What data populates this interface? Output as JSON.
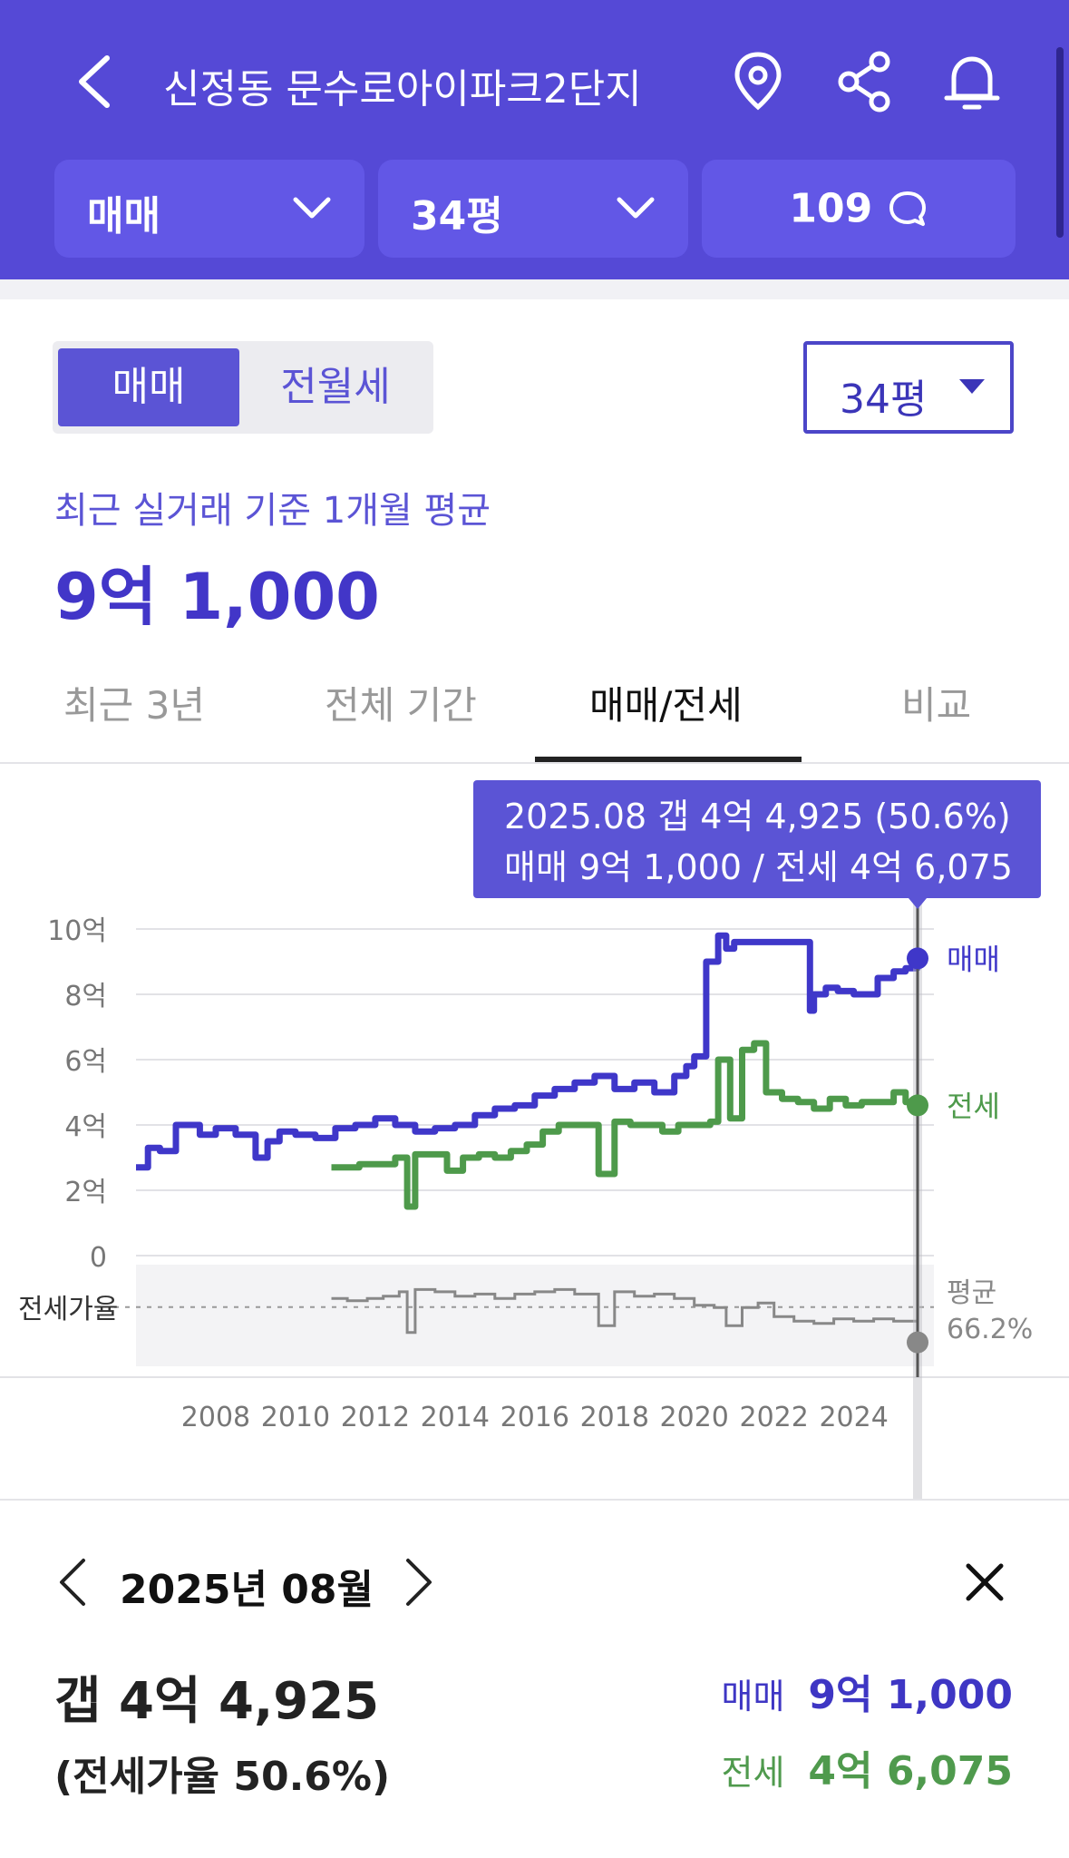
{
  "header": {
    "title": "신정동 문수로아이파크2단지",
    "icons": [
      "back-icon",
      "location-pin-icon",
      "share-icon",
      "bell-icon"
    ],
    "chips": {
      "trade_type": "매매",
      "size": "34평",
      "comment_count": "109"
    }
  },
  "controls": {
    "segments": [
      "매매",
      "전월세"
    ],
    "active_segment": "매매",
    "size_select": "34평"
  },
  "summary": {
    "label": "최근 실거래 기준 1개월 평균",
    "value": "9억 1,000"
  },
  "tabs": [
    "최근 3년",
    "전체 기간",
    "매매/전세",
    "비교"
  ],
  "active_tab": "매매/전세",
  "tooltip": {
    "line1": "2025.08  갭 4억 4,925 (50.6%)",
    "line2": "매매 9억 1,000 / 전세 4억 6,075"
  },
  "chart_data": {
    "type": "line",
    "y_unit": "억",
    "ylim": [
      0,
      10
    ],
    "y_ticks": [
      "10억",
      "8억",
      "6억",
      "4억",
      "2억",
      "0"
    ],
    "x_ticks": [
      "2008",
      "2010",
      "2012",
      "2014",
      "2016",
      "2018",
      "2020",
      "2022",
      "2024"
    ],
    "series": [
      {
        "name": "매매",
        "color": "#3f37c9",
        "x": [
          2006.0,
          2006.3,
          2006.6,
          2007.0,
          2007.3,
          2007.6,
          2008.0,
          2008.5,
          2009.0,
          2009.3,
          2009.6,
          2010.0,
          2010.5,
          2011.0,
          2011.5,
          2012.0,
          2012.5,
          2013.0,
          2013.5,
          2014.0,
          2014.5,
          2015.0,
          2015.5,
          2016.0,
          2016.5,
          2017.0,
          2017.5,
          2018.0,
          2018.5,
          2019.0,
          2019.5,
          2019.8,
          2020.0,
          2020.3,
          2020.6,
          2020.8,
          2021.0,
          2021.3,
          2021.6,
          2022.0,
          2022.5,
          2022.9,
          2023.0,
          2023.3,
          2023.6,
          2024.0,
          2024.3,
          2024.6,
          2025.0,
          2025.3,
          2025.6
        ],
        "values": [
          2.7,
          3.3,
          3.2,
          4.0,
          4.0,
          3.7,
          3.9,
          3.7,
          3.0,
          3.5,
          3.8,
          3.7,
          3.6,
          3.9,
          4.0,
          4.2,
          4.0,
          3.8,
          3.9,
          4.0,
          4.3,
          4.5,
          4.6,
          4.9,
          5.1,
          5.3,
          5.5,
          5.1,
          5.3,
          5.0,
          5.5,
          5.8,
          6.1,
          9.0,
          9.8,
          9.4,
          9.6,
          9.6,
          9.6,
          9.6,
          9.6,
          7.5,
          8.0,
          8.2,
          8.1,
          8.0,
          8.0,
          8.5,
          8.7,
          8.8,
          9.1
        ]
      },
      {
        "name": "전세",
        "color": "#4e9a4b",
        "x": [
          2010.9,
          2011.3,
          2011.6,
          2012.0,
          2012.5,
          2012.8,
          2013.0,
          2013.4,
          2013.8,
          2014.2,
          2014.6,
          2015.0,
          2015.4,
          2015.8,
          2016.2,
          2016.6,
          2017.0,
          2017.3,
          2017.6,
          2018.0,
          2018.4,
          2018.8,
          2019.2,
          2019.6,
          2020.0,
          2020.4,
          2020.6,
          2020.9,
          2021.2,
          2021.5,
          2021.8,
          2022.2,
          2022.6,
          2023.0,
          2023.4,
          2023.8,
          2024.2,
          2024.6,
          2025.0,
          2025.3,
          2025.6
        ],
        "values": [
          2.7,
          2.7,
          2.8,
          2.8,
          3.0,
          1.5,
          3.1,
          3.1,
          2.6,
          3.0,
          3.1,
          3.0,
          3.2,
          3.4,
          3.8,
          4.0,
          4.0,
          4.0,
          2.5,
          4.1,
          4.0,
          4.0,
          3.8,
          4.0,
          4.0,
          4.1,
          6.0,
          4.2,
          6.3,
          6.5,
          5.0,
          4.8,
          4.7,
          4.5,
          4.8,
          4.6,
          4.7,
          4.7,
          5.0,
          4.7,
          4.6
        ]
      }
    ],
    "ratio_series": {
      "name": "전세가율",
      "color": "#888888",
      "x": [
        2010.9,
        2011.3,
        2011.8,
        2012.2,
        2012.6,
        2012.8,
        2013.0,
        2013.5,
        2014.0,
        2014.5,
        2015.0,
        2015.5,
        2016.0,
        2016.5,
        2017.0,
        2017.4,
        2017.6,
        2018.0,
        2018.5,
        2019.0,
        2019.5,
        2020.0,
        2020.5,
        2020.8,
        2021.2,
        2021.6,
        2022.0,
        2022.5,
        2023.0,
        2023.5,
        2024.0,
        2024.5,
        2025.0,
        2025.6
      ],
      "values": [
        70,
        69,
        70,
        71,
        73,
        55,
        74,
        73,
        71,
        72,
        70,
        72,
        73,
        74,
        72,
        72,
        58,
        73,
        71,
        72,
        70,
        67,
        66,
        58,
        66,
        68,
        62,
        60,
        59,
        61,
        60,
        61,
        60,
        50.6
      ],
      "average_label": "평균",
      "average_value": "66.2%"
    },
    "ratio_label": "전세가율",
    "end_labels": {
      "sale": "매매",
      "jeonse": "전세"
    }
  },
  "detail": {
    "month": "2025년 08월",
    "gap": "갭 4억 4,925",
    "ratio": "(전세가율 50.6%)",
    "sale_label": "매매",
    "sale_value": "9억 1,000",
    "jeonse_label": "전세",
    "jeonse_value": "4억 6,075"
  }
}
